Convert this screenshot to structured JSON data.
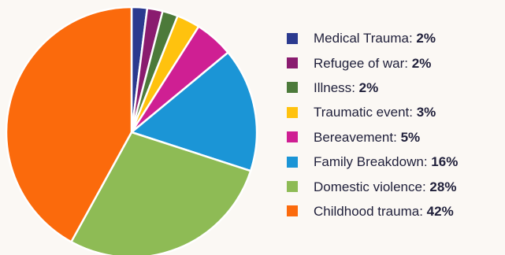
{
  "chart_data": {
    "type": "pie",
    "title": "",
    "legend_placement": "right",
    "slices": [
      {
        "label": "Medical Trauma",
        "value": 2,
        "display": "2%",
        "color": "#2b3a8f"
      },
      {
        "label": "Refugee of war",
        "value": 2,
        "display": "2%",
        "color": "#8a1c6f"
      },
      {
        "label": "Illness",
        "value": 2,
        "display": "2%",
        "color": "#4c7a3a"
      },
      {
        "label": "Traumatic event",
        "value": 3,
        "display": "3%",
        "color": "#ffc20e"
      },
      {
        "label": "Bereavement",
        "value": 5,
        "display": "5%",
        "color": "#cf1f93"
      },
      {
        "label": "Family Breakdown",
        "value": 16,
        "display": "16%",
        "color": "#1b95d6"
      },
      {
        "label": "Domestic violence",
        "value": 28,
        "display": "28%",
        "color": "#8ebb55"
      },
      {
        "label": "Childhood trauma",
        "value": 42,
        "display": "42%",
        "color": "#fb6a0c"
      }
    ]
  }
}
